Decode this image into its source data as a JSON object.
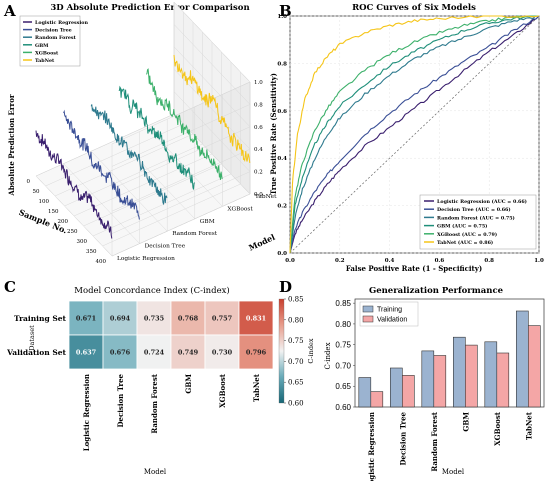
{
  "panel_letters": {
    "a": "A",
    "b": "B",
    "c": "C",
    "d": "D"
  },
  "colors": {
    "logistic_regression": "#3a1f6e",
    "decision_tree": "#3a4f96",
    "random_forest": "#2e7a8e",
    "gbm": "#1f8f7a",
    "xgboost": "#3cb06a",
    "tabnet": "#f5c518",
    "train_bar": "#9bb3d0",
    "val_bar": "#f4a6a6"
  },
  "chart_data": [
    {
      "id": "A",
      "type": "line",
      "title": "3D Absolute Prediction Error Comparison",
      "xlabel": "Sample No.",
      "ylabel": "Model",
      "zlabel": "Absolute Prediction Error",
      "x_ticks": [
        "0",
        "50",
        "100",
        "150",
        "200",
        "250",
        "300",
        "350",
        "400"
      ],
      "z_ticks": [
        "0.0",
        "0.2",
        "0.4",
        "0.6",
        "0.8",
        "1.0"
      ],
      "model_ticks": [
        "Logistic Regression",
        "Decision Tree",
        "Random Forest",
        "GBM",
        "XGBoost",
        "TabNet"
      ],
      "xlim": [
        0,
        400
      ],
      "zlim": [
        0,
        1
      ],
      "legend": "top-left",
      "series": [
        {
          "name": "Logistic Regression",
          "mean": 0.35
        },
        {
          "name": "Decision Tree",
          "mean": 0.37
        },
        {
          "name": "Random Forest",
          "mean": 0.4
        },
        {
          "name": "GBM",
          "mean": 0.41
        },
        {
          "name": "XGBoost",
          "mean": 0.4
        },
        {
          "name": "TabNet",
          "mean": 0.43
        }
      ]
    },
    {
      "id": "B",
      "type": "line",
      "title": "ROC Curves of Six Models",
      "xlabel": "False Positive Rate (1 - Specificity)",
      "ylabel": "True Positive Rate (Sensitivity)",
      "xlim": [
        0,
        1
      ],
      "ylim": [
        0,
        1
      ],
      "ticks": [
        "0.0",
        "0.2",
        "0.4",
        "0.6",
        "0.8",
        "1.0"
      ],
      "legend": "bottom-right",
      "series": [
        {
          "name": "Logistic Regression (AUC = 0.66)",
          "points": [
            [
              0,
              0
            ],
            [
              0.02,
              0.08
            ],
            [
              0.05,
              0.14
            ],
            [
              0.1,
              0.22
            ],
            [
              0.15,
              0.29
            ],
            [
              0.2,
              0.35
            ],
            [
              0.3,
              0.45
            ],
            [
              0.4,
              0.53
            ],
            [
              0.5,
              0.61
            ],
            [
              0.6,
              0.69
            ],
            [
              0.7,
              0.77
            ],
            [
              0.8,
              0.85
            ],
            [
              0.9,
              0.92
            ],
            [
              1,
              1
            ]
          ]
        },
        {
          "name": "Decision Tree (AUC = 0.66)",
          "points": [
            [
              0,
              0
            ],
            [
              0.02,
              0.1
            ],
            [
              0.05,
              0.17
            ],
            [
              0.1,
              0.26
            ],
            [
              0.15,
              0.33
            ],
            [
              0.2,
              0.39
            ],
            [
              0.3,
              0.5
            ],
            [
              0.4,
              0.59
            ],
            [
              0.5,
              0.67
            ],
            [
              0.6,
              0.74
            ],
            [
              0.7,
              0.81
            ],
            [
              0.8,
              0.87
            ],
            [
              0.9,
              0.94
            ],
            [
              1,
              1
            ]
          ]
        },
        {
          "name": "Random Forest (AUC = 0.75)",
          "points": [
            [
              0,
              0
            ],
            [
              0.02,
              0.15
            ],
            [
              0.05,
              0.27
            ],
            [
              0.1,
              0.4
            ],
            [
              0.15,
              0.5
            ],
            [
              0.2,
              0.57
            ],
            [
              0.3,
              0.67
            ],
            [
              0.4,
              0.75
            ],
            [
              0.5,
              0.82
            ],
            [
              0.6,
              0.87
            ],
            [
              0.7,
              0.91
            ],
            [
              0.8,
              0.95
            ],
            [
              0.9,
              0.98
            ],
            [
              1,
              1
            ]
          ]
        },
        {
          "name": "GBM (AUC = 0.75)",
          "points": [
            [
              0,
              0
            ],
            [
              0.02,
              0.2
            ],
            [
              0.05,
              0.32
            ],
            [
              0.1,
              0.46
            ],
            [
              0.15,
              0.55
            ],
            [
              0.2,
              0.62
            ],
            [
              0.3,
              0.71
            ],
            [
              0.4,
              0.79
            ],
            [
              0.5,
              0.85
            ],
            [
              0.6,
              0.9
            ],
            [
              0.7,
              0.94
            ],
            [
              0.8,
              0.97
            ],
            [
              0.9,
              0.99
            ],
            [
              1,
              1
            ]
          ]
        },
        {
          "name": "XGBoost (AUC = 0.79)",
          "points": [
            [
              0,
              0
            ],
            [
              0.02,
              0.24
            ],
            [
              0.05,
              0.38
            ],
            [
              0.1,
              0.52
            ],
            [
              0.15,
              0.61
            ],
            [
              0.2,
              0.68
            ],
            [
              0.3,
              0.77
            ],
            [
              0.4,
              0.84
            ],
            [
              0.5,
              0.89
            ],
            [
              0.6,
              0.93
            ],
            [
              0.7,
              0.96
            ],
            [
              0.8,
              0.98
            ],
            [
              0.9,
              0.995
            ],
            [
              1,
              1
            ]
          ]
        },
        {
          "name": "TabNet (AUC = 0.86)",
          "points": [
            [
              0,
              0
            ],
            [
              0.01,
              0.3
            ],
            [
              0.03,
              0.5
            ],
            [
              0.06,
              0.65
            ],
            [
              0.1,
              0.76
            ],
            [
              0.15,
              0.83
            ],
            [
              0.2,
              0.88
            ],
            [
              0.3,
              0.93
            ],
            [
              0.4,
              0.96
            ],
            [
              0.5,
              0.98
            ],
            [
              0.6,
              0.99
            ],
            [
              0.8,
              1
            ],
            [
              1,
              1
            ]
          ]
        }
      ]
    },
    {
      "id": "C",
      "type": "heatmap",
      "title": "Model Concordance Index (C-index)",
      "xlabel": "Model",
      "ylabel": "Dataset",
      "categories": [
        "Logistic Regression",
        "Decision Tree",
        "Random Forest",
        "GBM",
        "XGBoost",
        "TabNet"
      ],
      "rows": [
        "Training Set",
        "Validation Set"
      ],
      "values": [
        [
          0.671,
          0.694,
          0.735,
          0.768,
          0.757,
          0.831
        ],
        [
          0.637,
          0.676,
          0.724,
          0.749,
          0.73,
          0.796
        ]
      ],
      "value_labels": [
        [
          "0.671",
          "0.694",
          "0.735",
          "0.768",
          "0.757",
          "0.831"
        ],
        [
          "0.637",
          "0.676",
          "0.724",
          "0.749",
          "0.730",
          "0.796"
        ]
      ],
      "colorbar_ticks": [
        "0.85",
        "0.80",
        "0.75",
        "0.70",
        "0.65",
        "0.60"
      ],
      "colorbar_range": [
        0.6,
        0.85
      ],
      "colorbar_label": "C-index"
    },
    {
      "id": "D",
      "type": "bar",
      "title": "Generalization Performance",
      "xlabel": "Model",
      "ylabel": "C-index",
      "categories": [
        "Logistic Regression",
        "Decision Tree",
        "Random Forest",
        "GBM",
        "XGBoost",
        "TabNet"
      ],
      "series": [
        {
          "name": "Training",
          "values": [
            0.671,
            0.694,
            0.735,
            0.768,
            0.757,
            0.831
          ]
        },
        {
          "name": "Validation",
          "values": [
            0.637,
            0.676,
            0.724,
            0.749,
            0.73,
            0.796
          ]
        }
      ],
      "ylim": [
        0.6,
        0.86
      ],
      "y_ticks": [
        "0.60",
        "0.65",
        "0.70",
        "0.75",
        "0.80",
        "0.85"
      ],
      "legend": "top-left"
    }
  ]
}
